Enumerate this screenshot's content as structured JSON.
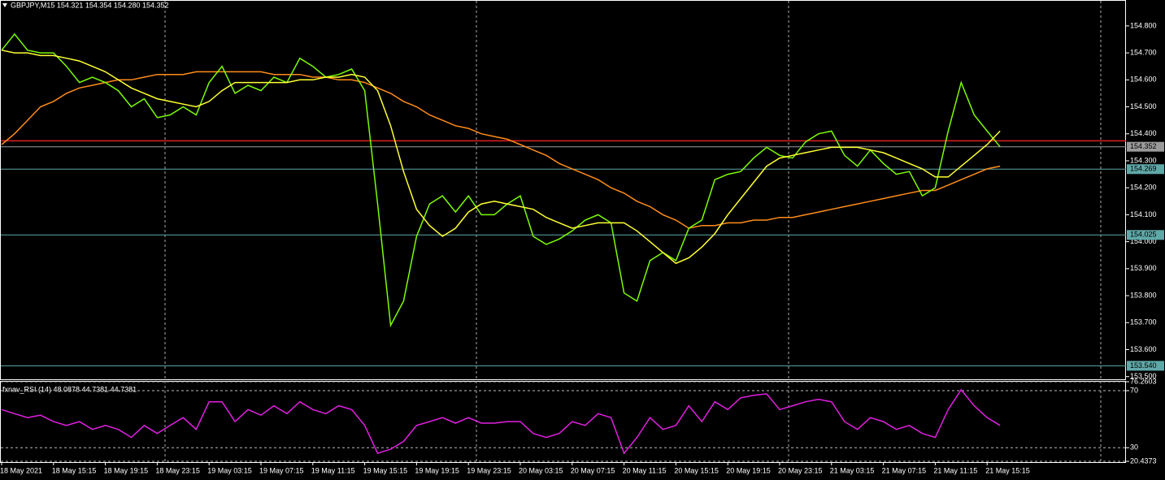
{
  "chart_data": [
    {
      "type": "line",
      "title": "GBPJPY,M15  154.321 154.354 154.280 154.352",
      "categories": [
        "18 May 2021",
        null,
        null,
        null,
        "18 May 15:15",
        null,
        null,
        null,
        "18 May 19:15",
        null,
        null,
        null,
        "18 May 23:15",
        null,
        null,
        null,
        "19 May 03:15",
        null,
        null,
        null,
        "19 May 07:15",
        null,
        null,
        null,
        "19 May 11:15",
        null,
        null,
        null,
        "19 May 15:15",
        null,
        null,
        null,
        "19 May 19:15",
        null,
        null,
        null,
        "19 May 23:15",
        null,
        null,
        null,
        "20 May 03:15",
        null,
        null,
        null,
        "20 May 07:15",
        null,
        null,
        null,
        "20 May 11:15",
        null,
        null,
        null,
        "20 May 15:15",
        null,
        null,
        null,
        "20 May 19:15",
        null,
        null,
        null,
        "20 May 23:15",
        null,
        null,
        null,
        "21 May 03:15",
        null,
        null,
        null,
        "21 May 07:15",
        null,
        null,
        null,
        "21 May 11:15",
        null,
        null,
        null,
        "21 May 15:15",
        null
      ],
      "series": [
        {
          "color": "#ff8c1a",
          "values": [
            154.36,
            154.4,
            154.45,
            154.5,
            154.52,
            154.55,
            154.57,
            154.58,
            154.59,
            154.6,
            154.6,
            154.61,
            154.62,
            154.62,
            154.62,
            154.63,
            154.63,
            154.63,
            154.63,
            154.63,
            154.63,
            154.62,
            154.62,
            154.62,
            154.61,
            154.61,
            154.6,
            154.6,
            154.59,
            154.57,
            154.55,
            154.52,
            154.5,
            154.47,
            154.45,
            154.43,
            154.42,
            154.4,
            154.39,
            154.38,
            154.36,
            154.34,
            154.32,
            154.29,
            154.27,
            154.25,
            154.23,
            154.2,
            154.18,
            154.15,
            154.13,
            154.1,
            154.08,
            154.05,
            154.06,
            154.06,
            154.07,
            154.07,
            154.08,
            154.08,
            154.09,
            154.09,
            154.1,
            154.11,
            154.12,
            154.13,
            154.14,
            154.15,
            154.16,
            154.17,
            154.18,
            154.19,
            154.19,
            154.21,
            154.23,
            154.25,
            154.27,
            154.28
          ]
        },
        {
          "color": "#7cfc00",
          "values": [
            154.71,
            154.77,
            154.71,
            154.7,
            154.7,
            154.65,
            154.59,
            154.61,
            154.59,
            154.56,
            154.5,
            154.53,
            154.46,
            154.47,
            154.5,
            154.47,
            154.59,
            154.65,
            154.55,
            154.58,
            154.56,
            154.61,
            154.59,
            154.68,
            154.65,
            154.61,
            154.62,
            154.64,
            154.56,
            154.14,
            153.69,
            153.78,
            154.02,
            154.14,
            154.17,
            154.11,
            154.17,
            154.1,
            154.1,
            154.14,
            154.17,
            154.02,
            153.99,
            154.01,
            154.04,
            154.08,
            154.1,
            154.07,
            153.81,
            153.78,
            153.93,
            153.96,
            153.93,
            154.05,
            154.08,
            154.23,
            154.25,
            154.26,
            154.31,
            154.35,
            154.32,
            154.31,
            154.37,
            154.4,
            154.41,
            154.32,
            154.28,
            154.34,
            154.29,
            154.25,
            154.26,
            154.17,
            154.2,
            154.41,
            154.59,
            154.47,
            154.41,
            154.352
          ]
        },
        {
          "color": "#ffff33",
          "values": [
            154.71,
            154.7,
            154.7,
            154.69,
            154.69,
            154.68,
            154.67,
            154.65,
            154.63,
            154.6,
            154.57,
            154.55,
            154.53,
            154.52,
            154.51,
            154.5,
            154.52,
            154.56,
            154.59,
            154.59,
            154.59,
            154.59,
            154.59,
            154.6,
            154.6,
            154.61,
            154.61,
            154.62,
            154.61,
            154.56,
            154.43,
            154.26,
            154.12,
            154.06,
            154.02,
            154.05,
            154.11,
            154.14,
            154.15,
            154.14,
            154.13,
            154.12,
            154.09,
            154.07,
            154.05,
            154.06,
            154.07,
            154.07,
            154.07,
            154.04,
            154.0,
            153.96,
            153.92,
            153.94,
            153.98,
            154.03,
            154.1,
            154.16,
            154.22,
            154.28,
            154.31,
            154.32,
            154.33,
            154.34,
            154.35,
            154.35,
            154.35,
            154.34,
            154.33,
            154.31,
            154.29,
            154.27,
            154.24,
            154.24,
            154.28,
            154.32,
            154.36,
            154.41
          ]
        }
      ],
      "ylim": [
        153.49,
        154.893
      ],
      "yticks": [
        {
          "value": 153.5,
          "label": "153.500"
        },
        {
          "value": 153.6,
          "label": "153.600"
        },
        {
          "value": 153.7,
          "label": "153.700"
        },
        {
          "value": 153.8,
          "label": "153.800"
        },
        {
          "value": 153.9,
          "label": "153.900"
        },
        {
          "value": 154.0,
          "label": "154.000"
        },
        {
          "value": 154.1,
          "label": "154.100"
        },
        {
          "value": 154.2,
          "label": "154.200"
        },
        {
          "value": 154.3,
          "label": "154.300"
        },
        {
          "value": 154.4,
          "label": "154.400"
        },
        {
          "value": 154.5,
          "label": "154.500"
        },
        {
          "value": 154.6,
          "label": "154.600"
        },
        {
          "value": 154.7,
          "label": "154.700"
        },
        {
          "value": 154.8,
          "label": "154.800"
        }
      ],
      "hlines": [
        {
          "value": 154.374,
          "color": "#e02020"
        },
        {
          "value": 154.352,
          "label": "154.352",
          "color": "#9a9a9a"
        },
        {
          "value": 154.269,
          "label": "154.269",
          "color": "#5fa8a8"
        },
        {
          "value": 154.025,
          "label": "154.025",
          "color": "#5fa8a8"
        },
        {
          "value": 153.54,
          "label": "153.540",
          "color": "#5fa8a8"
        }
      ]
    },
    {
      "type": "line",
      "title": "fxnav_RSI (14) 48.0878 44.7381 44.7381",
      "series": [
        {
          "color": "#e020e0",
          "values": [
            56.7,
            53.9,
            51.1,
            52.8,
            48.3,
            45.6,
            48.3,
            42.8,
            45.6,
            42.8,
            37.2,
            45.6,
            40,
            45.6,
            51.1,
            42.8,
            62.2,
            62.2,
            48.3,
            56.7,
            52.8,
            59.4,
            53.9,
            62.2,
            56.7,
            53.9,
            59.4,
            56.7,
            45.6,
            26.1,
            28.9,
            34.4,
            45.6,
            48.3,
            51.1,
            47.2,
            51.1,
            47.2,
            47.2,
            48.3,
            48.3,
            40,
            37.2,
            40,
            48.3,
            45.6,
            53.9,
            51.1,
            26.1,
            37.2,
            51.1,
            42.8,
            45.6,
            59.4,
            48.3,
            62.2,
            56.7,
            65,
            66.7,
            67.8,
            56.7,
            59.4,
            62.2,
            63.9,
            62.2,
            48.3,
            42.8,
            51.1,
            48.3,
            42.8,
            45.6,
            40,
            37.2,
            56.7,
            70.6,
            59.4,
            51.1,
            45.6
          ]
        }
      ],
      "ylim": [
        20.4373,
        76.2603
      ],
      "yticks": [
        20.4373,
        30,
        70,
        76.2603
      ]
    }
  ]
}
